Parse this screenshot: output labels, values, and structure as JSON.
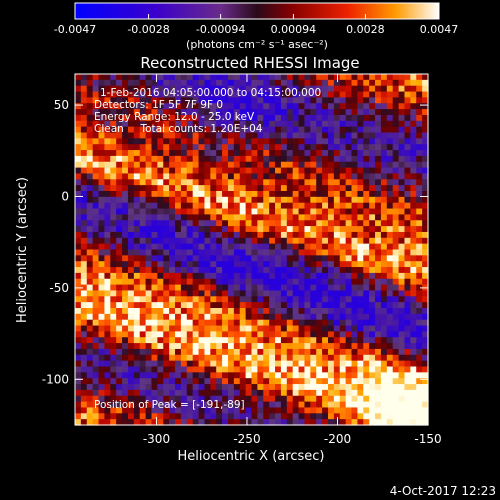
{
  "chart_data": {
    "type": "heatmap",
    "title": "Reconstructed RHESSI Image",
    "xlabel": "Heliocentric X (arcsec)",
    "ylabel": "Heliocentric Y (arcsec)",
    "xlim": [
      -345,
      -150
    ],
    "ylim": [
      -125,
      67
    ],
    "x_ticks": [
      "-300",
      "-250",
      "-200",
      "-150"
    ],
    "x_tick_values": [
      -300,
      -250,
      -200,
      -150
    ],
    "y_ticks": [
      "50",
      "0",
      "-50",
      "-100"
    ],
    "y_tick_values": [
      50,
      0,
      -50,
      -100
    ],
    "colorbar": {
      "min": -0.0047,
      "max": 0.0047,
      "tick_labels": [
        "-0.0047",
        "-0.0028",
        "-0.00094",
        "0.00094",
        "0.0028",
        "0.0047"
      ],
      "tick_values": [
        -0.0047,
        -0.0028,
        -0.00094,
        0.00094,
        0.0028,
        0.0047
      ],
      "units_label": "(photons cm⁻² s⁻¹ asec⁻²)"
    },
    "annotations": {
      "line1": "1-Feb-2016 04:05:00.000 to 04:15:00.000",
      "line2": "Detectors: 1F 5F 7F 9F 0",
      "line3": "Energy Range: 12.0 - 25.0 keV",
      "line4": "Clean     Total counts: 1.20E+04",
      "peak": "Position of Peak = [-191,-89]"
    },
    "grid": false
  },
  "footer": {
    "timestamp": "4-Oct-2017 12:23"
  }
}
